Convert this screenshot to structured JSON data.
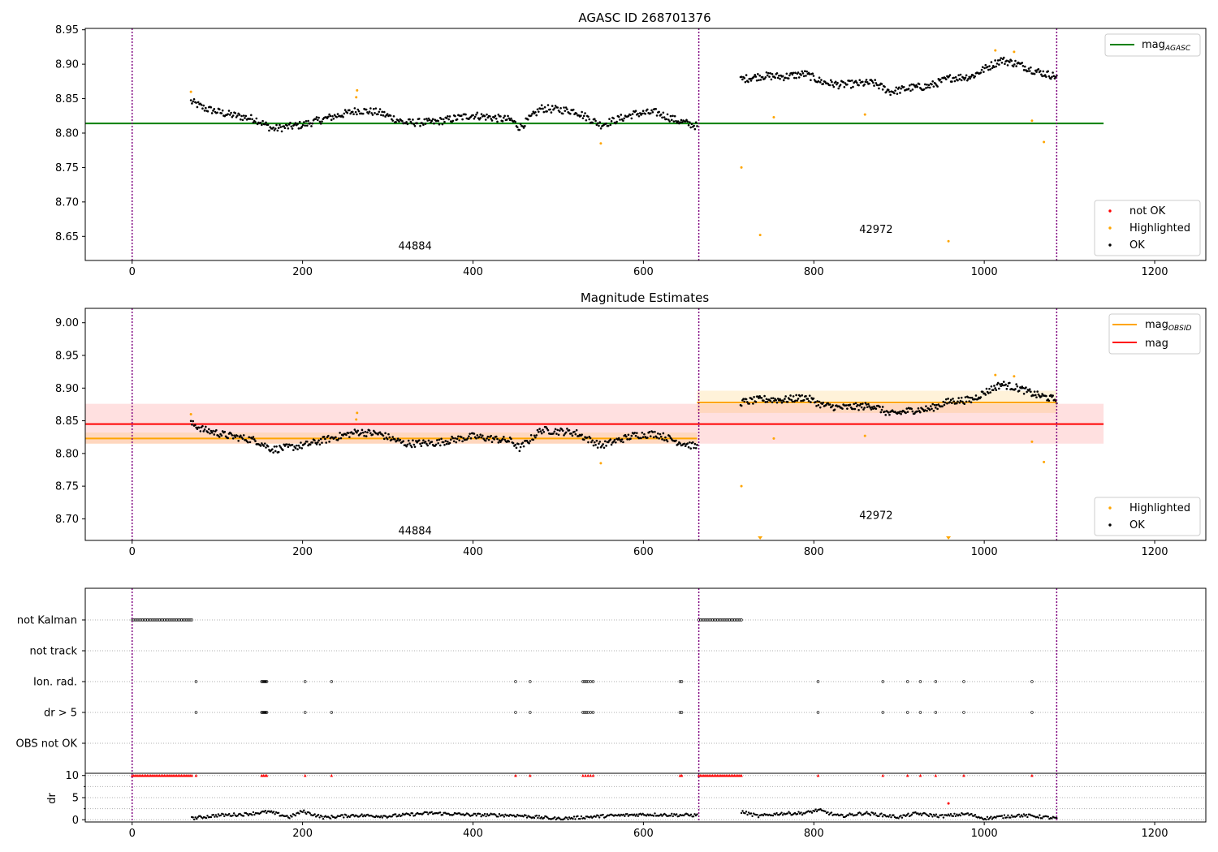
{
  "chart_data": [
    {
      "type": "scatter",
      "title": "AGASC ID 268701376",
      "xlim": [
        -55,
        1260
      ],
      "ylim": [
        8.615,
        8.952
      ],
      "xticks": [
        0,
        200,
        400,
        600,
        800,
        1000,
        1200
      ],
      "yticks": [
        "8.65",
        "8.70",
        "8.75",
        "8.80",
        "8.85",
        "8.90",
        "8.95"
      ],
      "obsid_boundaries": [
        0,
        665,
        1085
      ],
      "obsid_labels": [
        {
          "text": "44884",
          "x": 332,
          "y": 8.631
        },
        {
          "text": "42972",
          "x": 873,
          "y": 8.655
        }
      ],
      "hlines": [
        {
          "name": "mag_AGASC",
          "y": 8.814,
          "x": [
            -55,
            1140
          ],
          "color": "#008000"
        }
      ],
      "series": [
        {
          "name": "not OK",
          "color": "#ff0000",
          "points": []
        },
        {
          "name": "Highlighted",
          "color": "#ffa500",
          "points": [
            [
              69,
              8.86
            ],
            [
              263,
              8.852
            ],
            [
              264,
              8.862
            ],
            [
              550,
              8.785
            ],
            [
              715,
              8.75
            ],
            [
              737,
              8.652
            ],
            [
              753,
              8.823
            ],
            [
              860,
              8.827
            ],
            [
              958,
              8.643
            ],
            [
              1013,
              8.92
            ],
            [
              1035,
              8.918
            ],
            [
              1056,
              8.818
            ],
            [
              1070,
              8.787
            ]
          ]
        },
        {
          "name": "OK",
          "color": "#000000",
          "segments": [
            {
              "x0": 69,
              "x1": 663,
              "n": 480,
              "y": [
                [
                  69,
                  8.846
                ],
                [
                  85,
                  8.836
                ],
                [
                  110,
                  8.828
                ],
                [
                  145,
                  8.82
                ],
                [
                  165,
                  8.806
                ],
                [
                  200,
                  8.812
                ],
                [
                  230,
                  8.822
                ],
                [
                  265,
                  8.833
                ],
                [
                  290,
                  8.83
                ],
                [
                  320,
                  8.815
                ],
                [
                  355,
                  8.816
                ],
                [
                  400,
                  8.826
                ],
                [
                  445,
                  8.819
                ],
                [
                  455,
                  8.808
                ],
                [
                  480,
                  8.836
                ],
                [
                  520,
                  8.832
                ],
                [
                  550,
                  8.812
                ],
                [
                  590,
                  8.828
                ],
                [
                  615,
                  8.83
                ],
                [
                  640,
                  8.818
                ],
                [
                  663,
                  8.81
                ]
              ],
              "amp": 0.0055
            },
            {
              "x0": 714,
              "x1": 1085,
              "n": 330,
              "y": [
                [
                  714,
                  8.878
                ],
                [
                  740,
                  8.883
                ],
                [
                  765,
                  8.882
                ],
                [
                  790,
                  8.886
                ],
                [
                  810,
                  8.874
                ],
                [
                  830,
                  8.87
                ],
                [
                  870,
                  8.873
                ],
                [
                  890,
                  8.86
                ],
                [
                  915,
                  8.866
                ],
                [
                  935,
                  8.868
                ],
                [
                  960,
                  8.88
                ],
                [
                  985,
                  8.882
                ],
                [
                  1000,
                  8.893
                ],
                [
                  1020,
                  8.906
                ],
                [
                  1040,
                  8.9
                ],
                [
                  1060,
                  8.89
                ],
                [
                  1085,
                  8.882
                ]
              ],
              "amp": 0.0055
            }
          ]
        }
      ],
      "legends": {
        "top-right": [
          "mag_AGASC"
        ],
        "bottom-right": [
          "not OK",
          "Highlighted",
          "OK"
        ]
      }
    },
    {
      "type": "scatter",
      "title": "Magnitude Estimates",
      "xlim": [
        -55,
        1260
      ],
      "ylim": [
        8.667,
        9.022
      ],
      "xticks": [
        0,
        200,
        400,
        600,
        800,
        1000,
        1200
      ],
      "yticks": [
        "8.70",
        "8.75",
        "8.80",
        "8.85",
        "8.90",
        "8.95",
        "9.00"
      ],
      "obsid_boundaries": [
        0,
        665,
        1085
      ],
      "obsid_labels": [
        {
          "text": "44884",
          "x": 332,
          "y": 8.676
        },
        {
          "text": "42972",
          "x": 873,
          "y": 8.7
        }
      ],
      "bands": [
        {
          "name": "mag",
          "y": [
            8.815,
            8.876
          ],
          "x": [
            -55,
            1140
          ],
          "color": "#ff0000"
        },
        {
          "name": "mag_OBSID 44884",
          "y": [
            8.815,
            8.832
          ],
          "x": [
            -55,
            663
          ],
          "color": "#ffa500"
        },
        {
          "name": "mag_OBSID 42972",
          "y": [
            8.862,
            8.896
          ],
          "x": [
            663,
            1085
          ],
          "color": "#ffa500"
        }
      ],
      "hlines": [
        {
          "name": "mag",
          "y": 8.845,
          "x": [
            -55,
            1140
          ],
          "color": "#ff0000"
        },
        {
          "name": "mag_OBSID",
          "y": 8.823,
          "x": [
            -55,
            663
          ],
          "color": "#ffa500"
        },
        {
          "name": "mag_OBSID",
          "y": 8.878,
          "x": [
            663,
            1085
          ],
          "color": "#ffa500"
        }
      ],
      "series": [
        {
          "name": "Highlighted",
          "color": "#ffa500",
          "points": [
            [
              69,
              8.86
            ],
            [
              263,
              8.852
            ],
            [
              264,
              8.862
            ],
            [
              550,
              8.785
            ],
            [
              715,
              8.75
            ],
            [
              753,
              8.823
            ],
            [
              860,
              8.827
            ],
            [
              1013,
              8.92
            ],
            [
              1035,
              8.918
            ],
            [
              1056,
              8.818
            ],
            [
              1070,
              8.787
            ]
          ],
          "clipped_below": [
            737,
            958
          ]
        },
        {
          "name": "OK",
          "color": "#000000",
          "segments": [
            {
              "x0": 69,
              "x1": 663,
              "n": 480,
              "y": [
                [
                  69,
                  8.846
                ],
                [
                  85,
                  8.836
                ],
                [
                  110,
                  8.828
                ],
                [
                  145,
                  8.82
                ],
                [
                  165,
                  8.806
                ],
                [
                  200,
                  8.812
                ],
                [
                  230,
                  8.822
                ],
                [
                  265,
                  8.833
                ],
                [
                  290,
                  8.83
                ],
                [
                  320,
                  8.815
                ],
                [
                  355,
                  8.816
                ],
                [
                  400,
                  8.826
                ],
                [
                  445,
                  8.819
                ],
                [
                  455,
                  8.808
                ],
                [
                  480,
                  8.836
                ],
                [
                  520,
                  8.832
                ],
                [
                  550,
                  8.812
                ],
                [
                  590,
                  8.828
                ],
                [
                  615,
                  8.83
                ],
                [
                  640,
                  8.818
                ],
                [
                  663,
                  8.81
                ]
              ],
              "amp": 0.0055
            },
            {
              "x0": 714,
              "x1": 1085,
              "n": 330,
              "y": [
                [
                  714,
                  8.878
                ],
                [
                  740,
                  8.883
                ],
                [
                  765,
                  8.882
                ],
                [
                  790,
                  8.886
                ],
                [
                  810,
                  8.874
                ],
                [
                  830,
                  8.87
                ],
                [
                  870,
                  8.873
                ],
                [
                  890,
                  8.86
                ],
                [
                  915,
                  8.866
                ],
                [
                  935,
                  8.868
                ],
                [
                  960,
                  8.88
                ],
                [
                  985,
                  8.882
                ],
                [
                  1000,
                  8.893
                ],
                [
                  1020,
                  8.906
                ],
                [
                  1040,
                  8.9
                ],
                [
                  1060,
                  8.89
                ],
                [
                  1085,
                  8.882
                ]
              ],
              "amp": 0.0055
            }
          ]
        }
      ],
      "legends": {
        "top-right": [
          "mag_OBSID",
          "mag"
        ],
        "bottom-right": [
          "Highlighted",
          "OK"
        ]
      }
    },
    {
      "type": "scatter",
      "title": "",
      "xlim": [
        -55,
        1260
      ],
      "categories": [
        "not Kalman",
        "not track",
        "Ion. rad.",
        "dr > 5",
        "OBS not OK"
      ],
      "flags": {
        "not Kalman": [
          [
            0,
            70
          ],
          [
            665,
            715
          ]
        ],
        "not track": [],
        "Ion. rad.": [
          75,
          152,
          153,
          154,
          155,
          156,
          157,
          158,
          203,
          234,
          450,
          467,
          529,
          531,
          533,
          535,
          538,
          541,
          643,
          645,
          805,
          881,
          910,
          925,
          943,
          976,
          1056
        ],
        "dr > 5": [
          75,
          152,
          153,
          154,
          155,
          156,
          157,
          158,
          203,
          234,
          450,
          467,
          529,
          531,
          533,
          535,
          538,
          541,
          643,
          645,
          805,
          881,
          910,
          925,
          943,
          976,
          1056
        ],
        "OBS not OK": []
      }
    },
    {
      "type": "scatter",
      "title": "",
      "ylabel": "dr",
      "xlim": [
        -55,
        1260
      ],
      "ylim": [
        -0.5,
        10.5
      ],
      "xticks": [
        0,
        200,
        400,
        600,
        800,
        1000,
        1200
      ],
      "yticks": [
        "0",
        "5",
        "10"
      ],
      "clipped_at_10": [
        [
          0,
          70
        ],
        [
          665,
          715
        ],
        75,
        152,
        154,
        156,
        158,
        203,
        234,
        450,
        467,
        529,
        532,
        535,
        538,
        541,
        643,
        645,
        805,
        881,
        910,
        925,
        943,
        976,
        1056
      ],
      "red_point": [
        958,
        3.7
      ],
      "series": [
        {
          "name": "dr",
          "color": "#000000",
          "segments": [
            {
              "x0": 70,
              "x1": 663,
              "n": 420,
              "y": [
                [
                  70,
                  0.3
                ],
                [
                  100,
                  1.0
                ],
                [
                  130,
                  1.2
                ],
                [
                  160,
                  1.8
                ],
                [
                  185,
                  0.6
                ],
                [
                  200,
                  1.9
                ],
                [
                  225,
                  0.5
                ],
                [
                  260,
                  1.0
                ],
                [
                  300,
                  0.8
                ],
                [
                  350,
                  1.5
                ],
                [
                  400,
                  1.1
                ],
                [
                  450,
                  1.0
                ],
                [
                  500,
                  0.2
                ],
                [
                  550,
                  0.8
                ],
                [
                  600,
                  1.2
                ],
                [
                  663,
                  1.0
                ]
              ],
              "amp": 0.35
            },
            {
              "x0": 715,
              "x1": 1085,
              "n": 260,
              "y": [
                [
                  715,
                  1.8
                ],
                [
                  735,
                  0.8
                ],
                [
                  760,
                  1.4
                ],
                [
                  790,
                  1.5
                ],
                [
                  805,
                  2.2
                ],
                [
                  830,
                  0.8
                ],
                [
                  860,
                  1.5
                ],
                [
                  900,
                  0.6
                ],
                [
                  920,
                  1.4
                ],
                [
                  950,
                  0.8
                ],
                [
                  980,
                  1.3
                ],
                [
                  1000,
                  0.3
                ],
                [
                  1040,
                  1.0
                ],
                [
                  1060,
                  0.8
                ],
                [
                  1085,
                  0.3
                ]
              ],
              "amp": 0.35
            }
          ]
        }
      ]
    }
  ],
  "legend_labels": {
    "mag_agasc_main": "mag",
    "mag_agasc_sub": "AGASC",
    "mag_obsid_main": "mag",
    "mag_obsid_sub": "OBSID",
    "mag": "mag",
    "not_ok": "not OK",
    "highlighted": "Highlighted",
    "ok": "OK"
  }
}
